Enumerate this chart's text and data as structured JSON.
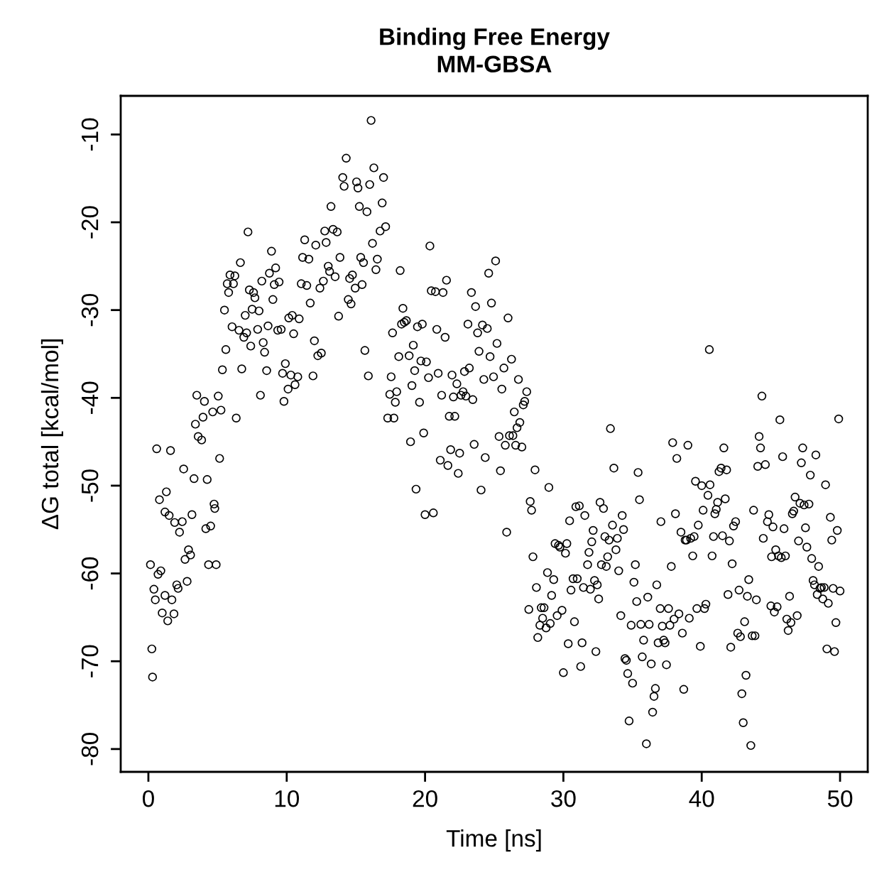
{
  "chart_data": {
    "type": "scatter",
    "title": "Binding Free Energy\nMM-GBSA",
    "xlabel": "Time [ns]",
    "ylabel": "ΔG total [kcal/mol]",
    "xlim": [
      -2,
      52
    ],
    "ylim": [
      -82.6,
      -5.6
    ],
    "xticks": [
      0,
      10,
      20,
      30,
      40,
      50
    ],
    "yticks": [
      -80,
      -70,
      -60,
      -50,
      -40,
      -30,
      -20,
      -10
    ],
    "grid": false,
    "marker": "circle",
    "series": [
      {
        "color": "#000000",
        "x": [
          0.15,
          0.25,
          0.3,
          0.4,
          0.5,
          0.6,
          0.7,
          0.8,
          0.9,
          1.0,
          1.2,
          1.2,
          1.3,
          1.4,
          1.5,
          1.6,
          1.7,
          1.85,
          1.9,
          2.05,
          2.15,
          2.25,
          2.45,
          2.55,
          2.65,
          2.8,
          2.9,
          3.05,
          3.15,
          3.3,
          3.4,
          3.5,
          3.6,
          3.85,
          3.95,
          4.05,
          4.15,
          4.25,
          4.35,
          4.5,
          4.65,
          4.75,
          4.8,
          4.9,
          5.05,
          5.15,
          5.25,
          5.35,
          5.5,
          5.6,
          5.7,
          5.8,
          5.9,
          6.05,
          6.15,
          6.25,
          6.35,
          6.55,
          6.65,
          6.75,
          6.9,
          7.0,
          7.1,
          7.2,
          7.3,
          7.4,
          7.5,
          7.6,
          7.7,
          7.9,
          8.0,
          8.1,
          8.2,
          8.3,
          8.4,
          8.55,
          8.65,
          8.75,
          8.9,
          9.0,
          9.1,
          9.2,
          9.35,
          9.45,
          9.6,
          9.7,
          9.8,
          9.9,
          10.1,
          10.15,
          10.3,
          10.4,
          10.5,
          10.6,
          10.8,
          10.9,
          11.05,
          11.15,
          11.3,
          11.45,
          11.6,
          11.7,
          11.9,
          12.0,
          12.1,
          12.25,
          12.4,
          12.5,
          12.65,
          12.75,
          12.85,
          13.0,
          13.1,
          13.2,
          13.35,
          13.5,
          13.65,
          13.75,
          13.85,
          14.05,
          14.15,
          14.3,
          14.45,
          14.55,
          14.65,
          14.75,
          14.95,
          15.05,
          15.15,
          15.25,
          15.35,
          15.45,
          15.55,
          15.65,
          15.8,
          15.9,
          16.0,
          16.1,
          16.2,
          16.3,
          16.45,
          16.55,
          16.75,
          16.9,
          17.0,
          17.15,
          17.3,
          17.45,
          17.55,
          17.65,
          17.75,
          17.85,
          17.95,
          18.1,
          18.2,
          18.3,
          18.4,
          18.5,
          18.65,
          18.85,
          18.95,
          19.05,
          19.15,
          19.25,
          19.35,
          19.45,
          19.6,
          19.7,
          19.8,
          19.9,
          20.0,
          20.1,
          20.25,
          20.35,
          20.45,
          20.6,
          20.75,
          20.85,
          20.95,
          21.1,
          21.2,
          21.3,
          21.45,
          21.55,
          21.65,
          21.75,
          21.85,
          21.95,
          22.05,
          22.15,
          22.3,
          22.4,
          22.5,
          22.6,
          22.75,
          22.85,
          22.95,
          23.1,
          23.2,
          23.35,
          23.45,
          23.55,
          23.65,
          23.8,
          23.9,
          24.05,
          24.15,
          24.25,
          24.35,
          24.5,
          24.6,
          24.7,
          24.8,
          24.95,
          25.1,
          25.2,
          25.35,
          25.45,
          25.55,
          25.7,
          25.8,
          25.9,
          26.0,
          26.1,
          26.25,
          26.35,
          26.45,
          26.55,
          26.65,
          26.75,
          26.85,
          27.0,
          27.1,
          27.2,
          27.35,
          27.5,
          27.6,
          27.7,
          27.8,
          27.95,
          28.05,
          28.15,
          28.3,
          28.4,
          28.5,
          28.6,
          28.75,
          28.85,
          28.95,
          29.05,
          29.15,
          29.3,
          29.4,
          29.55,
          29.65,
          29.75,
          29.9,
          30.0,
          30.15,
          30.25,
          30.35,
          30.45,
          30.55,
          30.7,
          30.8,
          30.9,
          31.0,
          31.15,
          31.25,
          31.35,
          31.45,
          31.55,
          31.75,
          31.85,
          31.95,
          32.05,
          32.15,
          32.25,
          32.35,
          32.45,
          32.55,
          32.65,
          32.75,
          32.9,
          33.0,
          33.1,
          33.2,
          33.3,
          33.4,
          33.55,
          33.65,
          33.8,
          33.9,
          34.0,
          34.15,
          34.25,
          34.35,
          34.45,
          34.55,
          34.65,
          34.75,
          34.9,
          35.0,
          35.1,
          35.2,
          35.3,
          35.4,
          35.5,
          35.6,
          35.7,
          35.8,
          36.0,
          36.1,
          36.2,
          36.35,
          36.45,
          36.55,
          36.65,
          36.75,
          36.85,
          37.0,
          37.05,
          37.15,
          37.25,
          37.35,
          37.45,
          37.6,
          37.7,
          37.8,
          37.9,
          38.0,
          38.1,
          38.2,
          38.35,
          38.5,
          38.6,
          38.7,
          38.8,
          38.9,
          39.0,
          39.1,
          39.2,
          39.35,
          39.45,
          39.55,
          39.65,
          39.75,
          39.9,
          40.0,
          40.1,
          40.2,
          40.3,
          40.45,
          40.55,
          40.6,
          40.75,
          40.85,
          40.95,
          41.05,
          41.15,
          41.25,
          41.4,
          41.5,
          41.6,
          41.7,
          41.8,
          41.9,
          42.0,
          42.1,
          42.2,
          42.3,
          42.45,
          42.6,
          42.7,
          42.8,
          42.9,
          43.0,
          43.1,
          43.2,
          43.3,
          43.4,
          43.55,
          43.65,
          43.75,
          43.85,
          43.95,
          44.05,
          44.15,
          44.25,
          44.35,
          44.45,
          44.6,
          44.75,
          44.85,
          45.0,
          45.05,
          45.15,
          45.25,
          45.35,
          45.45,
          45.55,
          45.65,
          45.75,
          45.85,
          45.95,
          46.05,
          46.15,
          46.25,
          46.35,
          46.45,
          46.55,
          46.65,
          46.75,
          46.9,
          47.0,
          47.1,
          47.2,
          47.3,
          47.4,
          47.5,
          47.6,
          47.75,
          47.85,
          47.95,
          48.05,
          48.15,
          48.25,
          48.35,
          48.45,
          48.55,
          48.65,
          48.75,
          48.85,
          48.95,
          49.05,
          49.15,
          49.3,
          49.4,
          49.5,
          49.6,
          49.7,
          49.8,
          49.9,
          50.0
        ],
        "values": [
          -59.0,
          -68.6,
          -71.8,
          -61.8,
          -63.0,
          -45.8,
          -60.1,
          -51.6,
          -59.7,
          -64.5,
          -62.5,
          -53.0,
          -50.7,
          -65.4,
          -53.4,
          -46.0,
          -63.0,
          -64.6,
          -54.2,
          -61.3,
          -61.7,
          -55.3,
          -54.1,
          -48.1,
          -58.4,
          -60.9,
          -57.3,
          -57.9,
          -53.3,
          -49.2,
          -43.0,
          -39.7,
          -44.4,
          -44.8,
          -42.2,
          -40.4,
          -54.9,
          -49.3,
          -59.0,
          -54.6,
          -41.6,
          -52.1,
          -52.6,
          -59.0,
          -39.8,
          -46.9,
          -41.4,
          -36.8,
          -30.0,
          -34.5,
          -27.0,
          -28.0,
          -26.0,
          -31.9,
          -27.0,
          -26.1,
          -42.3,
          -32.3,
          -24.6,
          -36.7,
          -33.1,
          -30.6,
          -32.6,
          -21.1,
          -27.7,
          -34.1,
          -29.9,
          -28.0,
          -28.6,
          -32.2,
          -30.1,
          -39.7,
          -26.7,
          -33.7,
          -34.8,
          -36.9,
          -31.8,
          -25.8,
          -23.3,
          -28.8,
          -27.1,
          -25.2,
          -32.3,
          -26.8,
          -32.2,
          -37.2,
          -40.4,
          -36.1,
          -39.0,
          -30.9,
          -37.4,
          -30.6,
          -32.7,
          -38.5,
          -37.6,
          -31.0,
          -27.0,
          -24.0,
          -22.0,
          -27.2,
          -24.2,
          -29.2,
          -37.5,
          -33.5,
          -22.6,
          -35.2,
          -27.5,
          -34.9,
          -26.7,
          -21.0,
          -22.3,
          -25.0,
          -25.6,
          -18.2,
          -20.8,
          -26.2,
          -21.1,
          -30.7,
          -24.0,
          -14.9,
          -15.9,
          -12.7,
          -28.8,
          -26.4,
          -29.3,
          -26.0,
          -27.5,
          -15.4,
          -16.1,
          -18.2,
          -24.0,
          -27.1,
          -24.6,
          -34.6,
          -18.8,
          -37.5,
          -15.7,
          -8.4,
          -22.4,
          -13.8,
          -25.4,
          -24.2,
          -21.0,
          -17.8,
          -14.9,
          -20.5,
          -42.3,
          -39.6,
          -37.6,
          -32.6,
          -42.3,
          -40.5,
          -39.3,
          -35.3,
          -25.5,
          -31.6,
          -29.8,
          -31.4,
          -31.2,
          -35.2,
          -45.0,
          -38.6,
          -34.0,
          -36.9,
          -50.4,
          -31.9,
          -40.5,
          -35.8,
          -31.6,
          -44.0,
          -53.3,
          -35.9,
          -37.7,
          -22.7,
          -27.8,
          -53.1,
          -27.9,
          -32.2,
          -37.2,
          -47.1,
          -39.7,
          -28.0,
          -33.1,
          -26.6,
          -47.7,
          -42.1,
          -45.9,
          -37.4,
          -39.9,
          -42.1,
          -38.4,
          -48.6,
          -46.3,
          -39.7,
          -39.3,
          -37.0,
          -39.8,
          -31.6,
          -36.6,
          -28.0,
          -40.2,
          -45.3,
          -29.6,
          -32.6,
          -34.7,
          -50.5,
          -31.7,
          -37.9,
          -46.8,
          -32.1,
          -25.8,
          -35.3,
          -29.2,
          -37.6,
          -24.4,
          -33.8,
          -44.4,
          -48.3,
          -39.0,
          -36.6,
          -45.4,
          -55.3,
          -30.9,
          -44.3,
          -35.6,
          -44.3,
          -41.6,
          -45.4,
          -43.4,
          -37.9,
          -42.8,
          -45.6,
          -40.8,
          -40.4,
          -39.3,
          -64.1,
          -51.8,
          -52.8,
          -58.1,
          -48.2,
          -61.6,
          -67.3,
          -65.9,
          -63.9,
          -65.1,
          -63.9,
          -66.2,
          -59.9,
          -50.2,
          -65.7,
          -62.5,
          -60.7,
          -56.6,
          -64.8,
          -56.8,
          -57.0,
          -64.2,
          -71.3,
          -57.7,
          -56.6,
          -68.0,
          -54.0,
          -61.9,
          -60.6,
          -65.5,
          -52.4,
          -60.6,
          -52.3,
          -70.6,
          -67.9,
          -61.6,
          -53.4,
          -59.0,
          -57.6,
          -61.8,
          -56.4,
          -55.1,
          -60.8,
          -68.9,
          -61.3,
          -62.9,
          -51.9,
          -59.0,
          -52.6,
          -55.8,
          -59.2,
          -58.1,
          -56.2,
          -43.5,
          -54.5,
          -48.0,
          -57.3,
          -56.0,
          -59.7,
          -64.8,
          -53.4,
          -55.0,
          -69.7,
          -69.9,
          -71.4,
          -76.8,
          -65.9,
          -72.5,
          -61.0,
          -59.0,
          -63.2,
          -48.5,
          -51.6,
          -65.8,
          -69.5,
          -67.6,
          -79.4,
          -62.7,
          -65.8,
          -70.3,
          -75.8,
          -74.0,
          -73.1,
          -61.3,
          -67.9,
          -64.0,
          -54.1,
          -66.0,
          -67.6,
          -67.9,
          -70.4,
          -64.0,
          -65.9,
          -59.2,
          -45.1,
          -65.2,
          -53.2,
          -46.9,
          -64.6,
          -55.3,
          -66.8,
          -73.2,
          -56.2,
          -56.2,
          -45.4,
          -65.1,
          -56.0,
          -58.0,
          -55.8,
          -49.5,
          -64.0,
          -54.5,
          -68.3,
          -50.0,
          -52.8,
          -64.0,
          -63.5,
          -51.1,
          -34.5,
          -49.9,
          -58.0,
          -55.8,
          -53.2,
          -52.7,
          -51.9,
          -48.4,
          -48.0,
          -55.7,
          -45.7,
          -51.5,
          -48.2,
          -62.4,
          -56.3,
          -68.4,
          -58.9,
          -54.6,
          -54.1,
          -66.8,
          -61.9,
          -67.2,
          -73.7,
          -77.0,
          -65.5,
          -71.6,
          -62.6,
          -60.7,
          -79.6,
          -67.1,
          -52.8,
          -67.1,
          -63.0,
          -47.8,
          -44.4,
          -45.7,
          -39.8,
          -56.0,
          -47.6,
          -54.1,
          -53.3,
          -63.7,
          -58.1,
          -54.7,
          -64.4,
          -57.3,
          -63.8,
          -58.0,
          -42.5,
          -58.2,
          -46.7,
          -54.9,
          -58.0,
          -65.2,
          -66.5,
          -62.6,
          -65.6,
          -53.2,
          -52.9,
          -51.3,
          -64.8,
          -56.3,
          -52.0,
          -47.4,
          -45.7,
          -52.2,
          -54.8,
          -57.0,
          -52.1,
          -48.8,
          -58.3,
          -60.8,
          -61.3,
          -46.5,
          -62.4,
          -59.2,
          -61.7,
          -61.6,
          -62.9,
          -61.6,
          -49.9,
          -68.6,
          -63.4,
          -53.6,
          -56.2,
          -61.7,
          -68.9,
          -65.6,
          -55.1,
          -42.4,
          -62.0
        ]
      }
    ]
  }
}
